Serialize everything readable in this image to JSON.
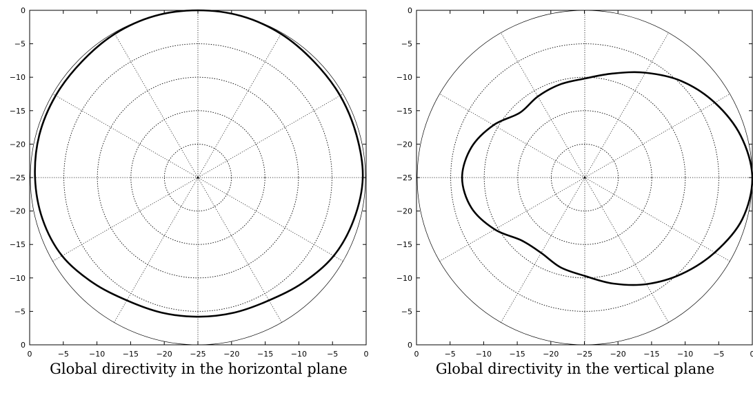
{
  "chart_data": [
    {
      "type": "polar-line",
      "title": "Global directivity in the horizontal plane",
      "radial_unit": "dB",
      "radial_range": [
        -25,
        0
      ],
      "grid": true,
      "grid_rings_db": [
        -20,
        -15,
        -10,
        -5,
        0
      ],
      "spoke_step_deg": 30,
      "x_tick_labels": [
        "0",
        "−5",
        "−10",
        "−15",
        "−20",
        "−25",
        "−20",
        "−15",
        "−10",
        "−5",
        "0"
      ],
      "y_tick_labels": [
        "0",
        "−5",
        "−10",
        "−15",
        "−20",
        "−25",
        "−20",
        "−15",
        "−10",
        "−5",
        "0"
      ],
      "series": [
        {
          "angle_deg": [
            0,
            15,
            30,
            45,
            60,
            75,
            90,
            105,
            120,
            135,
            150,
            165,
            180,
            195,
            210,
            225,
            240,
            255,
            270,
            285,
            300,
            315,
            330,
            345
          ],
          "level_db": [
            -0.4,
            -0.5,
            -0.5,
            -0.5,
            -0.2,
            0.0,
            0.0,
            0.0,
            -0.2,
            -0.5,
            -0.5,
            -0.5,
            -0.7,
            -1.0,
            -1.6,
            -2.8,
            -3.8,
            -4.1,
            -4.2,
            -4.1,
            -3.8,
            -2.8,
            -1.6,
            -0.9
          ]
        }
      ]
    },
    {
      "type": "polar-line",
      "title": "Global directivity in the vertical plane",
      "radial_unit": "dB",
      "radial_range": [
        -25,
        0
      ],
      "grid": true,
      "grid_rings_db": [
        -20,
        -15,
        -10,
        -5,
        0
      ],
      "spoke_step_deg": 30,
      "x_tick_labels": [
        "0",
        "−5",
        "−10",
        "−15",
        "−20",
        "−25",
        "−20",
        "−15",
        "−10",
        "−5",
        "0"
      ],
      "y_tick_labels": [
        "0",
        "−5",
        "−10",
        "−15",
        "−20",
        "−25",
        "−20",
        "−15",
        "−10",
        "−5",
        "0"
      ],
      "series": [
        {
          "angle_deg": [
            0,
            15,
            30,
            45,
            60,
            75,
            90,
            105,
            120,
            135,
            150,
            165,
            180,
            195,
            210,
            225,
            240,
            255,
            270,
            285,
            300,
            315,
            330,
            345
          ],
          "level_db": [
            0.0,
            -0.9,
            -2.6,
            -4.6,
            -6.9,
            -8.9,
            -10.2,
            -10.6,
            -11.0,
            -11.3,
            -9.3,
            -7.5,
            -6.7,
            -7.5,
            -9.5,
            -11.7,
            -12.0,
            -11.1,
            -10.3,
            -8.6,
            -6.6,
            -4.6,
            -2.6,
            -0.7
          ]
        }
      ]
    }
  ]
}
